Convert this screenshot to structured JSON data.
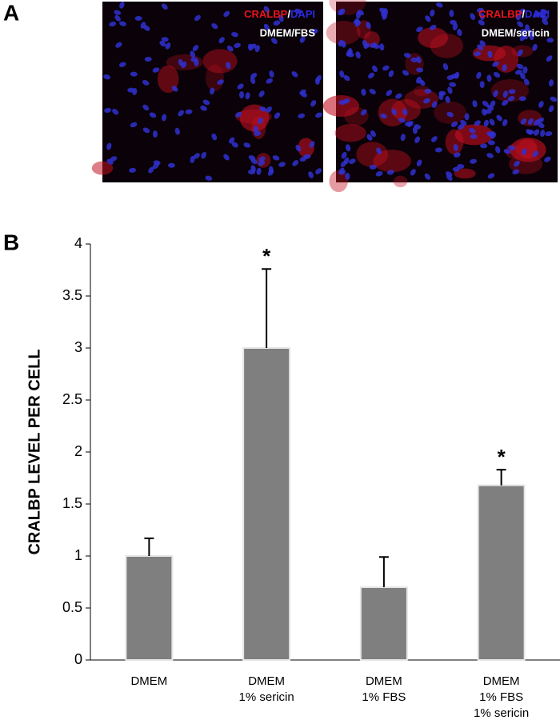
{
  "panel_a": {
    "label": "A",
    "images": [
      {
        "stain_1": "CRALBP",
        "separator": "/",
        "stain_2": "DAPI",
        "condition": "DMEM/FBS"
      },
      {
        "stain_1": "CRALBP",
        "separator": "/",
        "stain_2": "DAPI",
        "condition": "DMEM/sericin"
      }
    ]
  },
  "chart_data": {
    "type": "bar",
    "panel_label": "B",
    "ylabel": "CRALBP LEVEL PER CELL",
    "categories": [
      [
        "DMEM"
      ],
      [
        "DMEM",
        "1% sericin"
      ],
      [
        "DMEM",
        "1% FBS"
      ],
      [
        "DMEM",
        "1% FBS",
        "1% sericin"
      ]
    ],
    "values": [
      1,
      3,
      0.7,
      1.68
    ],
    "errors": [
      0.17,
      0.76,
      0.29,
      0.15
    ],
    "annotations": [
      null,
      "*",
      null,
      "*"
    ],
    "color": "#7f7f7f",
    "ylim": [
      0,
      4
    ],
    "yticks": [
      0,
      0.5,
      1,
      1.5,
      2,
      2.5,
      3,
      3.5,
      4
    ]
  }
}
